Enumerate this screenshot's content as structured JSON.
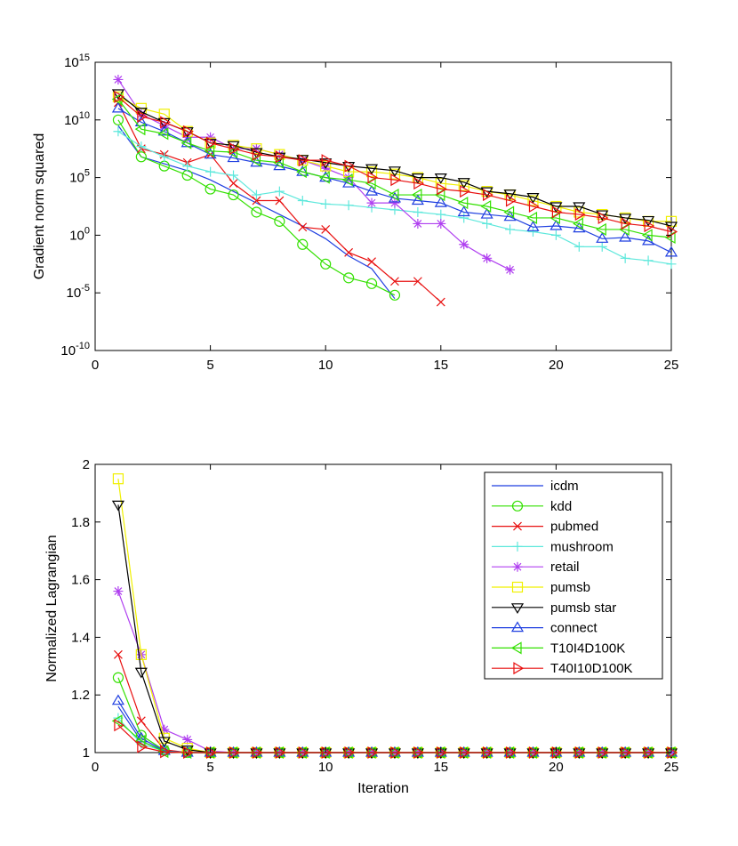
{
  "legend": [
    {
      "name": "icdm",
      "color": "#1f3fe0",
      "marker": "none"
    },
    {
      "name": "kdd",
      "color": "#33e000",
      "marker": "circle"
    },
    {
      "name": "pubmed",
      "color": "#e81010",
      "marker": "x"
    },
    {
      "name": "mushroom",
      "color": "#5ee8dc",
      "marker": "plus"
    },
    {
      "name": "retail",
      "color": "#b040f0",
      "marker": "star"
    },
    {
      "name": "pumsb",
      "color": "#f0f000",
      "marker": "square"
    },
    {
      "name": "pumsb star",
      "color": "#000000",
      "marker": "triangle-down"
    },
    {
      "name": "connect",
      "color": "#1f3fe0",
      "marker": "triangle-up"
    },
    {
      "name": "T10I4D100K",
      "color": "#33e000",
      "marker": "triangle-left"
    },
    {
      "name": "T40I10D100K",
      "color": "#e81010",
      "marker": "triangle-right"
    }
  ],
  "chart_data": [
    {
      "type": "line",
      "title": "",
      "xlabel": "",
      "ylabel": "Gradient norm squared",
      "yscale": "log",
      "xlim": [
        0,
        25
      ],
      "ylim_exp": [
        -10,
        15
      ],
      "xticks": [
        "0",
        "5",
        "10",
        "15",
        "20",
        "25"
      ],
      "yticks": [
        {
          "base": "10",
          "exp": "15"
        },
        {
          "base": "10",
          "exp": "10"
        },
        {
          "base": "10",
          "exp": "5"
        },
        {
          "base": "10",
          "exp": "0"
        },
        {
          "base": "10",
          "exp": "-5"
        },
        {
          "base": "10",
          "exp": "-10"
        }
      ],
      "x": [
        1,
        2,
        3,
        4,
        5,
        6,
        7,
        8,
        9,
        10,
        11,
        12,
        13,
        14,
        15,
        16,
        17,
        18,
        19,
        20,
        21,
        22,
        23,
        24,
        25
      ],
      "series_log10": [
        {
          "name": "icdm",
          "values": [
            9.5,
            6.8,
            6.2,
            5.6,
            4.8,
            3.8,
            2.8,
            1.8,
            0.8,
            -0.3,
            -1.8,
            -2.9,
            -5.5
          ]
        },
        {
          "name": "kdd",
          "values": [
            10.0,
            6.8,
            6.0,
            5.2,
            4.0,
            3.5,
            2.0,
            1.2,
            -0.8,
            -2.5,
            -3.7,
            -4.2,
            -5.2
          ]
        },
        {
          "name": "pubmed",
          "values": [
            11.5,
            7.5,
            7.0,
            6.3,
            7.0,
            4.5,
            3.0,
            3.0,
            0.7,
            0.5,
            -1.5,
            -2.3,
            -4.0,
            -4.0,
            -5.8
          ]
        },
        {
          "name": "mushroom",
          "values": [
            9.0,
            7.7,
            6.8,
            6.0,
            5.5,
            5.2,
            3.5,
            3.8,
            3.0,
            2.7,
            2.6,
            2.4,
            2.2,
            2.0,
            1.8,
            1.5,
            1.0,
            0.5,
            0.3,
            0.0,
            -1.0,
            -1.0,
            -2.0,
            -2.2,
            -2.5
          ]
        },
        {
          "name": "retail",
          "values": [
            13.5,
            10.5,
            9.5,
            8.5,
            8.5,
            7.5,
            7.5,
            7.0,
            6.5,
            5.8,
            5.0,
            2.8,
            2.8,
            1.0,
            1.0,
            -0.8,
            -2.0,
            -3.0
          ]
        },
        {
          "name": "pumsb",
          "values": [
            12.0,
            11.0,
            10.5,
            9.0,
            8.0,
            7.8,
            7.5,
            7.0,
            6.5,
            6.0,
            5.5,
            5.5,
            5.3,
            5.0,
            4.5,
            4.3,
            3.8,
            3.5,
            3.0,
            2.5,
            2.0,
            1.8,
            1.5,
            1.2,
            1.2
          ]
        },
        {
          "name": "pumsb star",
          "values": [
            12.3,
            10.7,
            9.8,
            9.0,
            8.0,
            7.8,
            7.2,
            6.8,
            6.6,
            6.3,
            6.0,
            5.8,
            5.6,
            5.0,
            5.0,
            4.6,
            3.8,
            3.6,
            3.3,
            2.5,
            2.5,
            1.8,
            1.5,
            1.3,
            0.8
          ]
        },
        {
          "name": "connect",
          "values": [
            11.0,
            9.8,
            9.0,
            8.0,
            7.0,
            6.7,
            6.3,
            6.0,
            5.5,
            5.0,
            4.5,
            3.8,
            3.2,
            3.0,
            2.8,
            2.0,
            1.8,
            1.6,
            0.7,
            0.8,
            0.6,
            -0.3,
            -0.2,
            -0.5,
            -1.5
          ]
        },
        {
          "name": "T10I4D100K",
          "values": [
            11.8,
            9.2,
            8.8,
            8.0,
            7.3,
            7.2,
            6.5,
            6.3,
            5.5,
            5.0,
            4.8,
            4.5,
            3.5,
            3.5,
            3.5,
            2.8,
            2.5,
            2.0,
            1.5,
            1.5,
            1.0,
            0.5,
            0.5,
            0.0,
            -0.2
          ]
        },
        {
          "name": "T40I10D100K",
          "values": [
            12.0,
            10.3,
            9.8,
            9.0,
            8.0,
            7.5,
            7.0,
            6.8,
            6.5,
            6.5,
            6.0,
            5.0,
            4.8,
            4.5,
            4.0,
            3.8,
            3.5,
            3.0,
            2.5,
            2.0,
            1.8,
            1.5,
            1.0,
            0.8,
            0.3
          ]
        }
      ]
    },
    {
      "type": "line",
      "title": "",
      "xlabel": "Iteration",
      "ylabel": "Normalized Lagrangian",
      "xlim": [
        0,
        25
      ],
      "ylim": [
        1,
        2
      ],
      "xticks": [
        "0",
        "5",
        "10",
        "15",
        "20",
        "25"
      ],
      "yticks": [
        "1",
        "1.2",
        "1.4",
        "1.6",
        "1.8",
        "2"
      ],
      "x": [
        1,
        2,
        3,
        4,
        5,
        6,
        7,
        8,
        9,
        10,
        11,
        12,
        13,
        14,
        15,
        16,
        17,
        18,
        19,
        20,
        21,
        22,
        23,
        24,
        25
      ],
      "series": [
        {
          "name": "icdm",
          "start": [
            1.16,
            1.04,
            1.005
          ]
        },
        {
          "name": "kdd",
          "start": [
            1.26,
            1.06,
            1.008
          ]
        },
        {
          "name": "pubmed",
          "start": [
            1.34,
            1.11,
            1.01
          ]
        },
        {
          "name": "mushroom",
          "start": [
            1.12,
            1.03,
            1.005
          ]
        },
        {
          "name": "retail",
          "start": [
            1.56,
            1.34,
            1.08,
            1.045,
            1.005
          ]
        },
        {
          "name": "pumsb",
          "start": [
            1.95,
            1.34,
            1.05,
            1.015
          ]
        },
        {
          "name": "pumsb star",
          "start": [
            1.86,
            1.28,
            1.04,
            1.01
          ]
        },
        {
          "name": "connect",
          "start": [
            1.18,
            1.05,
            1.006
          ]
        },
        {
          "name": "T10I4D100K",
          "start": [
            1.11,
            1.04,
            1.003
          ]
        },
        {
          "name": "T40I10D100K",
          "start": [
            1.095,
            1.02,
            1.002
          ]
        }
      ]
    }
  ]
}
